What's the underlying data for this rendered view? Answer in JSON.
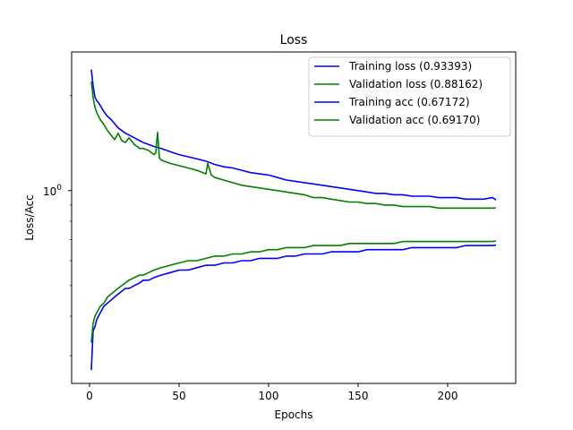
{
  "chart_data": {
    "type": "line",
    "title": "Loss",
    "xlabel": "Epochs",
    "ylabel": "Loss/Acc",
    "yscale": "log",
    "xlim": [
      -10,
      238
    ],
    "ylim": [
      0.245,
      2.75
    ],
    "grid": false,
    "legend_position": "top-right",
    "xticks": [
      {
        "value": 0,
        "label": "0"
      },
      {
        "value": 50,
        "label": "50"
      },
      {
        "value": 100,
        "label": "100"
      },
      {
        "value": 150,
        "label": "150"
      },
      {
        "value": 200,
        "label": "200"
      }
    ],
    "yticks": [
      {
        "value": 1,
        "base": "10",
        "exp": "0"
      }
    ],
    "series": [
      {
        "name": "Training loss (0.93393)",
        "color": "#0000ff",
        "x": [
          1,
          2,
          3,
          4,
          5,
          6,
          8,
          10,
          12,
          14,
          16,
          18,
          20,
          22,
          25,
          28,
          30,
          33,
          36,
          38,
          40,
          45,
          50,
          55,
          60,
          65,
          70,
          75,
          80,
          85,
          90,
          95,
          100,
          105,
          110,
          115,
          120,
          125,
          130,
          135,
          140,
          145,
          150,
          155,
          160,
          165,
          170,
          175,
          180,
          185,
          190,
          195,
          200,
          205,
          210,
          215,
          220,
          225,
          227
        ],
        "values": [
          2.42,
          2.15,
          1.98,
          1.93,
          1.9,
          1.86,
          1.78,
          1.72,
          1.68,
          1.63,
          1.58,
          1.55,
          1.52,
          1.5,
          1.47,
          1.44,
          1.42,
          1.4,
          1.38,
          1.37,
          1.36,
          1.33,
          1.3,
          1.28,
          1.26,
          1.24,
          1.21,
          1.19,
          1.18,
          1.16,
          1.14,
          1.13,
          1.12,
          1.1,
          1.08,
          1.07,
          1.06,
          1.05,
          1.04,
          1.03,
          1.02,
          1.01,
          1.0,
          0.99,
          0.98,
          0.98,
          0.97,
          0.97,
          0.96,
          0.96,
          0.96,
          0.95,
          0.95,
          0.95,
          0.94,
          0.94,
          0.94,
          0.95,
          0.934
        ]
      },
      {
        "name": "Validation loss (0.88162)",
        "color": "#008000",
        "x": [
          1,
          2,
          3,
          4,
          5,
          6,
          8,
          10,
          12,
          14,
          16,
          18,
          20,
          22,
          25,
          28,
          30,
          33,
          36,
          37,
          38,
          39,
          40,
          45,
          50,
          55,
          60,
          65,
          66,
          68,
          70,
          75,
          80,
          85,
          90,
          95,
          100,
          105,
          110,
          115,
          120,
          125,
          130,
          135,
          140,
          145,
          150,
          155,
          160,
          165,
          170,
          175,
          180,
          185,
          190,
          195,
          200,
          205,
          210,
          215,
          220,
          225,
          227
        ],
        "values": [
          2.22,
          1.97,
          1.84,
          1.77,
          1.72,
          1.68,
          1.62,
          1.55,
          1.5,
          1.45,
          1.52,
          1.44,
          1.42,
          1.47,
          1.4,
          1.36,
          1.36,
          1.34,
          1.3,
          1.32,
          1.53,
          1.27,
          1.25,
          1.22,
          1.2,
          1.18,
          1.16,
          1.13,
          1.22,
          1.12,
          1.1,
          1.08,
          1.06,
          1.04,
          1.03,
          1.02,
          1.01,
          1.0,
          0.99,
          0.98,
          0.97,
          0.95,
          0.95,
          0.94,
          0.93,
          0.92,
          0.92,
          0.91,
          0.91,
          0.9,
          0.9,
          0.89,
          0.89,
          0.89,
          0.89,
          0.88,
          0.88,
          0.88,
          0.88,
          0.88,
          0.88,
          0.88,
          0.882
        ]
      },
      {
        "name": "Training acc (0.67172)",
        "color": "#0000ff",
        "x": [
          1,
          2,
          3,
          4,
          5,
          6,
          8,
          10,
          12,
          14,
          16,
          18,
          20,
          22,
          25,
          28,
          30,
          33,
          36,
          40,
          45,
          50,
          55,
          60,
          65,
          70,
          75,
          80,
          85,
          90,
          95,
          100,
          105,
          110,
          115,
          120,
          125,
          130,
          135,
          140,
          145,
          150,
          155,
          160,
          165,
          170,
          175,
          180,
          185,
          190,
          195,
          200,
          205,
          210,
          215,
          220,
          225,
          227
        ],
        "values": [
          0.27,
          0.36,
          0.37,
          0.39,
          0.4,
          0.41,
          0.43,
          0.44,
          0.45,
          0.46,
          0.47,
          0.48,
          0.49,
          0.49,
          0.5,
          0.51,
          0.52,
          0.52,
          0.53,
          0.54,
          0.55,
          0.56,
          0.56,
          0.57,
          0.58,
          0.58,
          0.59,
          0.59,
          0.6,
          0.6,
          0.61,
          0.61,
          0.61,
          0.62,
          0.62,
          0.63,
          0.63,
          0.63,
          0.64,
          0.64,
          0.64,
          0.64,
          0.65,
          0.65,
          0.65,
          0.65,
          0.65,
          0.66,
          0.66,
          0.66,
          0.66,
          0.66,
          0.66,
          0.67,
          0.67,
          0.67,
          0.67,
          0.672
        ]
      },
      {
        "name": "Validation acc (0.69170)",
        "color": "#008000",
        "x": [
          1,
          2,
          3,
          4,
          5,
          6,
          8,
          10,
          12,
          14,
          16,
          18,
          20,
          22,
          25,
          28,
          30,
          33,
          36,
          40,
          45,
          50,
          55,
          60,
          65,
          70,
          75,
          80,
          85,
          90,
          95,
          100,
          105,
          110,
          115,
          120,
          125,
          130,
          135,
          140,
          145,
          150,
          155,
          160,
          165,
          170,
          175,
          180,
          185,
          190,
          195,
          200,
          205,
          210,
          215,
          220,
          225,
          227
        ],
        "values": [
          0.33,
          0.38,
          0.4,
          0.41,
          0.42,
          0.43,
          0.44,
          0.46,
          0.47,
          0.48,
          0.49,
          0.5,
          0.51,
          0.52,
          0.53,
          0.54,
          0.54,
          0.55,
          0.56,
          0.57,
          0.58,
          0.59,
          0.6,
          0.6,
          0.61,
          0.62,
          0.62,
          0.63,
          0.63,
          0.64,
          0.64,
          0.65,
          0.65,
          0.66,
          0.66,
          0.66,
          0.67,
          0.67,
          0.67,
          0.67,
          0.68,
          0.68,
          0.68,
          0.68,
          0.68,
          0.68,
          0.69,
          0.69,
          0.69,
          0.69,
          0.69,
          0.69,
          0.69,
          0.69,
          0.69,
          0.69,
          0.69,
          0.692
        ]
      }
    ]
  }
}
